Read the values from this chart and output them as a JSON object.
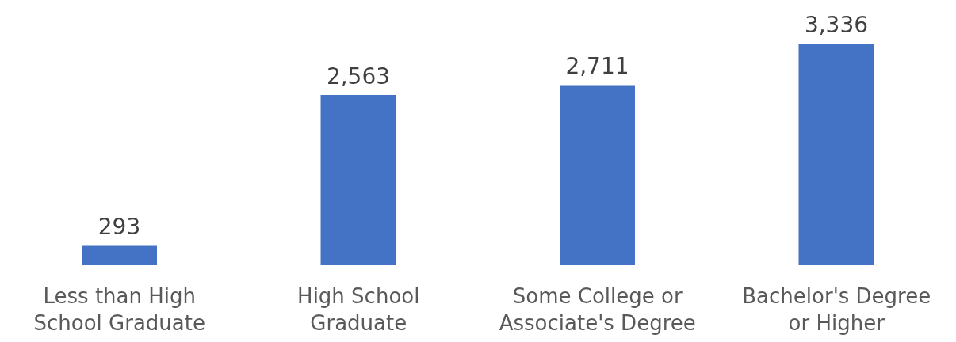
{
  "chart_data": {
    "type": "bar",
    "categories": [
      "Less than High School Graduate",
      "High School Graduate",
      "Some College or Associate's Degree",
      "Bachelor's Degree or Higher"
    ],
    "values": [
      293,
      2563,
      2711,
      3336
    ],
    "value_labels": [
      "293",
      "2,563",
      "2,711",
      "3,336"
    ],
    "color": "#4472c4",
    "grid": false,
    "legend": false
  }
}
